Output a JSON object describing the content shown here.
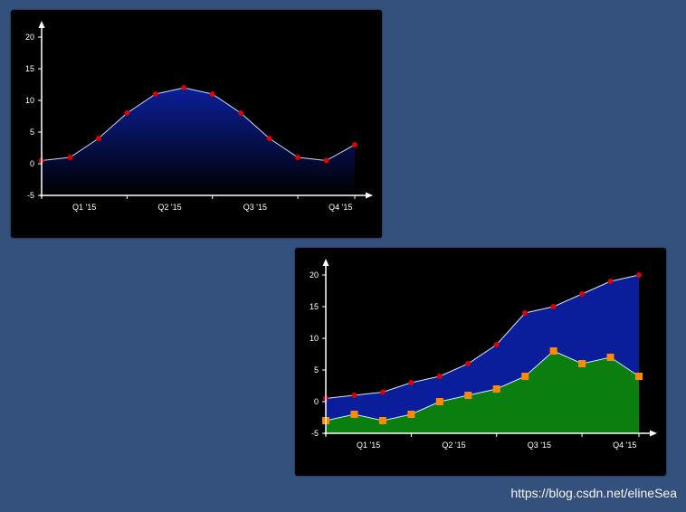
{
  "chart_data": [
    {
      "type": "area",
      "x": [
        0,
        1,
        2,
        3,
        4,
        5,
        6,
        7,
        8,
        9,
        10,
        11
      ],
      "categories": [
        "Q1 '15",
        "Q2 '15",
        "Q3 '15",
        "Q4 '15"
      ],
      "category_positions": [
        1.5,
        4.5,
        7.5,
        10.5
      ],
      "ylim": [
        -5,
        20
      ],
      "yticks": [
        -5,
        0,
        5,
        10,
        15,
        20
      ],
      "ytick_labels": [
        "-5",
        "0",
        "5",
        "10",
        "15",
        "20"
      ],
      "series": [
        {
          "values": [
            0.5,
            1,
            4,
            8,
            11,
            12,
            11,
            8,
            4,
            1,
            0.5,
            3
          ],
          "fill_top": "#0b1f9a",
          "fill_bottom": "#000000",
          "line_color": "#cfd6ff",
          "marker": "circle",
          "marker_color": "#dd0000"
        }
      ],
      "title": "",
      "xlabel": "",
      "ylabel": "",
      "grid": false,
      "legend": "none"
    },
    {
      "type": "area",
      "x": [
        0,
        1,
        2,
        3,
        4,
        5,
        6,
        7,
        8,
        9,
        10,
        11
      ],
      "categories": [
        "Q1 '15",
        "Q2 '15",
        "Q3 '15",
        "Q4 '15"
      ],
      "category_positions": [
        1.5,
        4.5,
        7.5,
        10.5
      ],
      "ylim": [
        -5,
        20
      ],
      "yticks": [
        -5,
        0,
        5,
        10,
        15,
        20
      ],
      "ytick_labels": [
        "-5",
        "0",
        "5",
        "10",
        "15",
        "20"
      ],
      "series": [
        {
          "values": [
            0.5,
            1,
            1.5,
            3,
            4,
            6,
            9,
            14,
            15,
            17,
            19,
            20
          ],
          "fill": "#0a1d9a",
          "line_color": "#d9e4ff",
          "marker": "circle",
          "marker_color": "#dd0000"
        },
        {
          "values": [
            -3,
            -2,
            -3,
            -2,
            0,
            1,
            2,
            4,
            8,
            6,
            7,
            4
          ],
          "fill": "#0a7f10",
          "line_color": "#d9e4ff",
          "marker": "square",
          "marker_color": "#ff8a00"
        }
      ],
      "title": "",
      "xlabel": "",
      "ylabel": "",
      "grid": false,
      "legend": "none"
    }
  ],
  "watermark": "https://blog.csdn.net/elineSea"
}
